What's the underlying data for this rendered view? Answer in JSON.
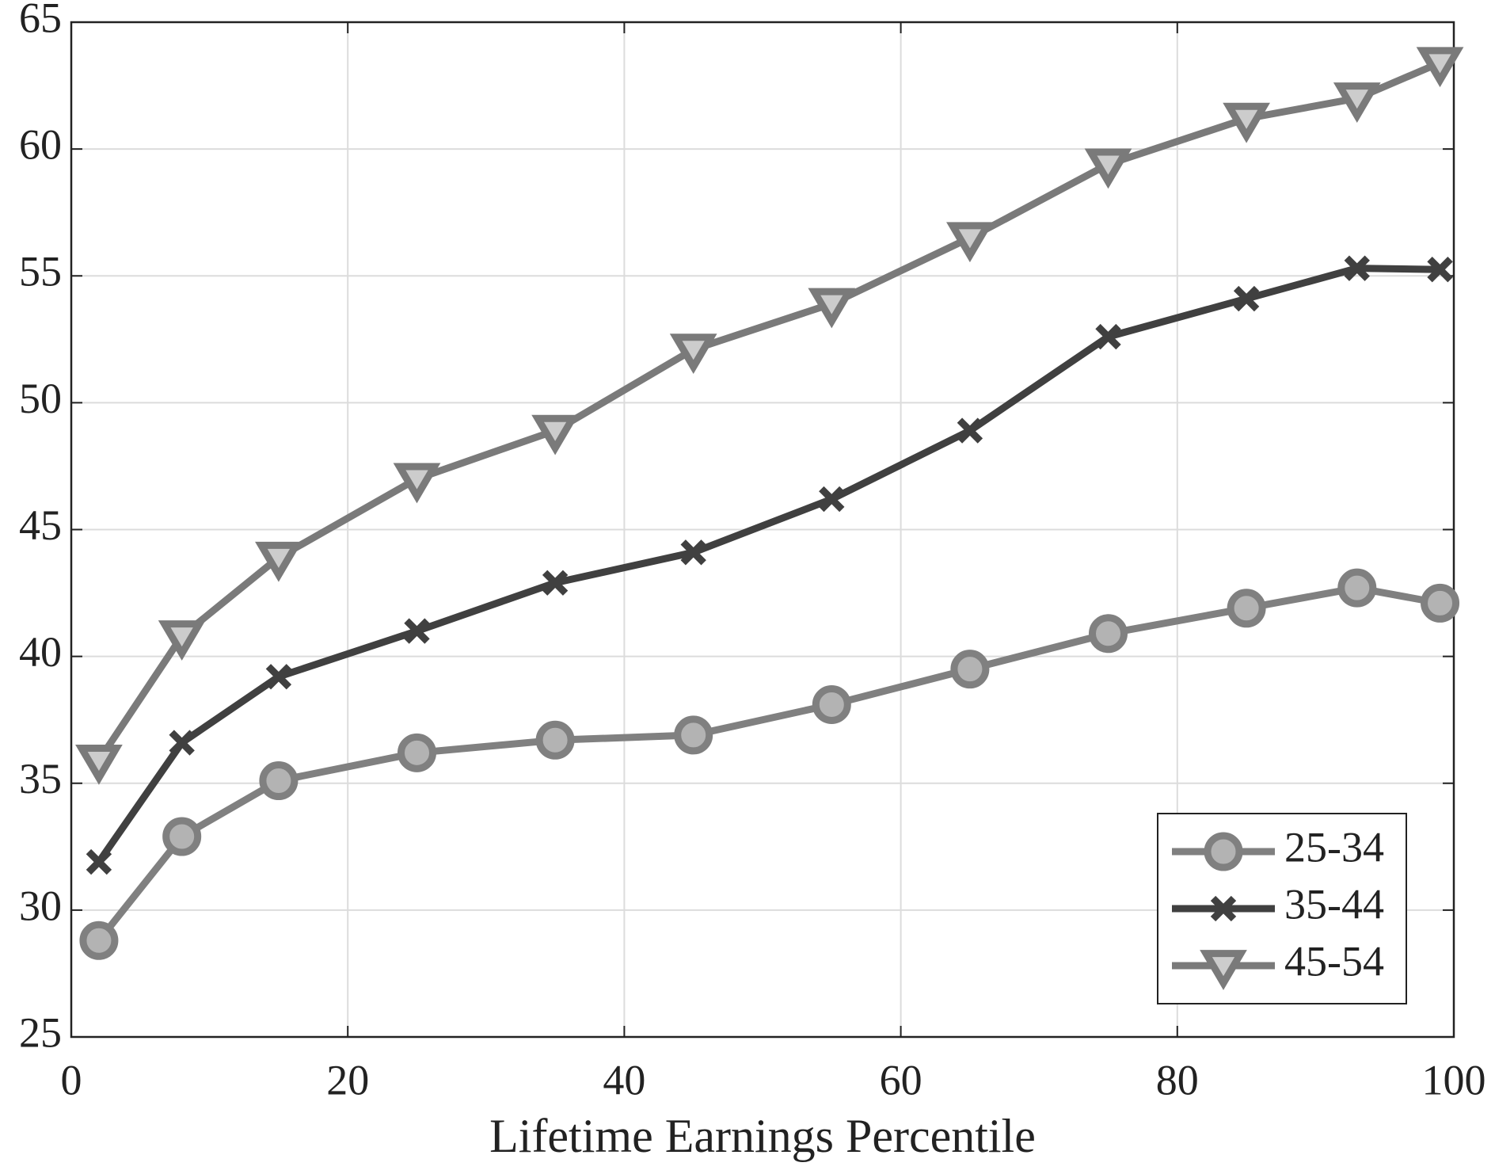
{
  "chart_data": {
    "type": "line",
    "xlabel": "Lifetime Earnings Percentile",
    "x": [
      2,
      8,
      15,
      25,
      35,
      45,
      55,
      65,
      75,
      85,
      93,
      99
    ],
    "series": [
      {
        "name": "25-34",
        "color": "#808080",
        "marker": "circle",
        "marker_fill": "#b3b3b3",
        "values": [
          28.8,
          32.9,
          35.1,
          36.2,
          36.7,
          36.9,
          38.1,
          39.5,
          40.9,
          41.9,
          42.7,
          42.1
        ]
      },
      {
        "name": "35-44",
        "color": "#404040",
        "marker": "x",
        "marker_fill": "#404040",
        "values": [
          31.9,
          36.6,
          39.2,
          41.0,
          42.9,
          44.1,
          46.2,
          48.9,
          52.6,
          54.1,
          55.3,
          55.25
        ]
      },
      {
        "name": "45-54",
        "color": "#7a7a7a",
        "marker": "triangle-down",
        "marker_fill": "#cccccc",
        "values": [
          35.9,
          40.8,
          43.9,
          47.0,
          48.9,
          52.1,
          53.9,
          56.5,
          59.4,
          61.2,
          62.0,
          63.4
        ]
      }
    ],
    "xlim": [
      0,
      100
    ],
    "xticks": [
      0,
      20,
      40,
      60,
      80,
      100
    ],
    "ylim": [
      25,
      65
    ],
    "yticks": [
      25,
      30,
      35,
      40,
      45,
      50,
      55,
      60,
      65
    ],
    "grid": true,
    "legend": "lower right"
  }
}
